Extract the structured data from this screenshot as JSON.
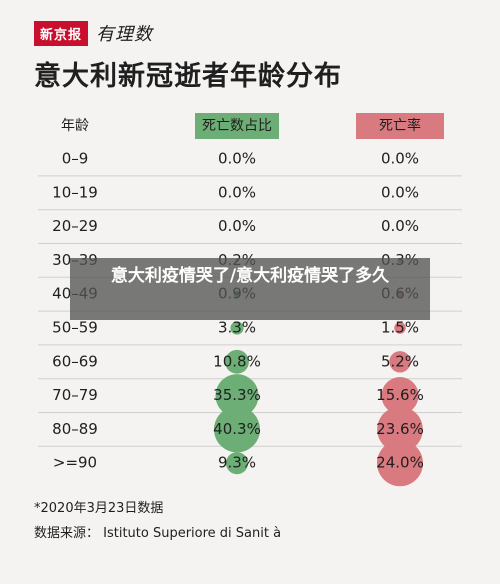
{
  "header": {
    "logo_text": "新京报",
    "logo_script": "有理数",
    "title": "意大利新冠逝者年龄分布"
  },
  "footnote": "*2020年3月23日数据",
  "source": "数据来源： Istituto Superiore di Sanit à",
  "overlay": {
    "text": "意大利疫情哭了/意大利疫情哭了多久"
  },
  "colors": {
    "green": "#6cae75",
    "red": "#d97a80",
    "brand_red": "#c8102e"
  },
  "chart_data": {
    "type": "table",
    "columns": [
      "年龄",
      "死亡数占比",
      "死亡率"
    ],
    "rows": [
      {
        "age": "0–9",
        "share": "0.0%",
        "rate": "0.0%",
        "share_value": 0.0,
        "rate_value": 0.0
      },
      {
        "age": "10–19",
        "share": "0.0%",
        "rate": "0.0%",
        "share_value": 0.0,
        "rate_value": 0.0
      },
      {
        "age": "20–29",
        "share": "0.0%",
        "rate": "0.0%",
        "share_value": 0.0,
        "rate_value": 0.0
      },
      {
        "age": "30–39",
        "share": "0.2%",
        "rate": "0.3%",
        "share_value": 0.2,
        "rate_value": 0.3
      },
      {
        "age": "40–49",
        "share": "0.9%",
        "rate": "0.6%",
        "share_value": 0.9,
        "rate_value": 0.6
      },
      {
        "age": "50–59",
        "share": "3.3%",
        "rate": "1.5%",
        "share_value": 3.3,
        "rate_value": 1.5
      },
      {
        "age": "60–69",
        "share": "10.8%",
        "rate": "5.2%",
        "share_value": 10.8,
        "rate_value": 5.2
      },
      {
        "age": "70–79",
        "share": "35.3%",
        "rate": "15.6%",
        "share_value": 35.3,
        "rate_value": 15.6
      },
      {
        "age": "80–89",
        "share": "40.3%",
        "rate": "23.6%",
        "share_value": 40.3,
        "rate_value": 23.6
      },
      {
        "age": ">=90",
        "share": "9.3%",
        "rate": "24.0%",
        "share_value": 9.3,
        "rate_value": 24.0
      }
    ]
  }
}
